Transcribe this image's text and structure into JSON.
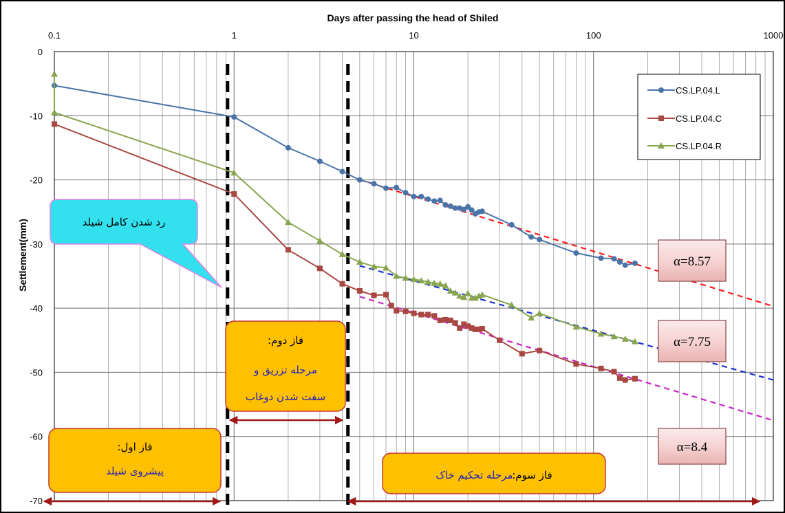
{
  "chart_data": {
    "type": "scatter",
    "title": "",
    "xlabel": "Days after passing the head of Shiled",
    "ylabel": "Settlement(mm)",
    "x_scale": "log",
    "xlim": [
      0.1,
      1000
    ],
    "ylim": [
      -70,
      0
    ],
    "x_ticks": [
      "0.1",
      "1",
      "10",
      "100",
      "1000"
    ],
    "y_ticks": [
      "0",
      "-10",
      "-20",
      "-30",
      "-40",
      "-50",
      "-60",
      "-70"
    ],
    "grid": true,
    "legend_position": "top-right",
    "series": [
      {
        "name": "CS.LP.04.L",
        "color": "#4a73a8",
        "marker": "circle",
        "x": [
          0.1,
          1,
          2,
          3,
          4,
          5,
          6,
          7,
          8,
          9,
          10,
          11,
          12,
          13,
          14,
          15,
          16,
          17,
          18,
          19,
          20,
          21,
          22,
          23,
          24,
          35,
          45,
          50,
          80,
          110,
          130,
          140,
          150,
          170
        ],
        "y": [
          -5.3,
          -10.2,
          -15,
          -17.1,
          -18.7,
          -20,
          -20.6,
          -21.3,
          -21.2,
          -22,
          -22.6,
          -22.6,
          -23,
          -23.3,
          -23.2,
          -23.9,
          -24.1,
          -24.4,
          -24.4,
          -24.6,
          -24.2,
          -24.7,
          -25.3,
          -25,
          -24.9,
          -27,
          -28.9,
          -29.3,
          -31.4,
          -32.2,
          -32.3,
          -32.8,
          -33.3,
          -33
        ]
      },
      {
        "name": "CS.LP.04.C",
        "color": "#a94742",
        "marker": "square",
        "x": [
          0.1,
          1,
          2,
          3,
          4,
          5,
          6,
          7,
          7.5,
          8,
          9,
          10,
          11,
          12,
          13,
          14,
          15,
          16,
          17,
          18,
          19,
          20,
          21,
          22,
          23,
          24,
          30,
          40,
          50,
          80,
          110,
          130,
          140,
          150,
          170
        ],
        "y": [
          -11.3,
          -22.2,
          -30.9,
          -33.8,
          -36.2,
          -37.3,
          -38,
          -37.9,
          -39.6,
          -40.4,
          -40.5,
          -40.8,
          -41,
          -41,
          -41.2,
          -41.9,
          -41.8,
          -41.9,
          -42.3,
          -43.1,
          -42.5,
          -42.8,
          -43.1,
          -43.3,
          -43.3,
          -43.2,
          -45,
          -47.1,
          -46.6,
          -48.7,
          -49.4,
          -49.9,
          -50.9,
          -51.2,
          -51
        ]
      },
      {
        "name": "CS.LP.04.R",
        "color": "#89a54e",
        "marker": "triangle",
        "x": [
          0.1,
          0.1,
          1,
          2,
          3,
          4,
          5,
          6,
          7,
          8,
          9,
          10,
          11,
          12,
          13,
          14,
          15,
          16,
          17,
          18,
          19,
          20,
          21,
          22,
          23,
          24,
          35,
          45,
          50,
          80,
          110,
          130,
          150,
          170
        ],
        "y": [
          -3.5,
          -9.5,
          -18.9,
          -26.6,
          -29.5,
          -31.6,
          -32.8,
          -33.5,
          -33.7,
          -35,
          -35.3,
          -35.5,
          -35.7,
          -35.9,
          -36.1,
          -36.2,
          -36.5,
          -37.3,
          -37.6,
          -38.1,
          -38.3,
          -37.7,
          -38.4,
          -38.4,
          -38.1,
          -37.9,
          -39.5,
          -41.5,
          -40.8,
          -42.9,
          -44,
          -44.4,
          -44.8,
          -45.2
        ]
      }
    ],
    "trend_lines": [
      {
        "color": "#ff1a1a",
        "label": "α=8.57",
        "x": [
          5,
          1000
        ],
        "y": [
          -20,
          -39.7
        ]
      },
      {
        "color": "#1a2fd6",
        "label": "α=7.75",
        "x": [
          5,
          1000
        ],
        "y": [
          -33.4,
          -51.2
        ]
      },
      {
        "color": "#cc22cc",
        "label": "α=8.4",
        "x": [
          5,
          1000
        ],
        "y": [
          -38.2,
          -57.5
        ]
      }
    ],
    "phase_lines_x": [
      0.92,
      4.3
    ],
    "annotations": {
      "callout": "رد شدن کامل شیلد",
      "phase1_title": "فاز اول:",
      "phase1_body": "پیشروی شیلد",
      "phase2_title": "فاز دوم:",
      "phase2_line1": "مرحله تزریق و",
      "phase2_line2": "سفت شدن دوغاب",
      "phase3_label": "فاز سوم:",
      "phase3_body": "مرحله تحکیم خاک"
    }
  }
}
